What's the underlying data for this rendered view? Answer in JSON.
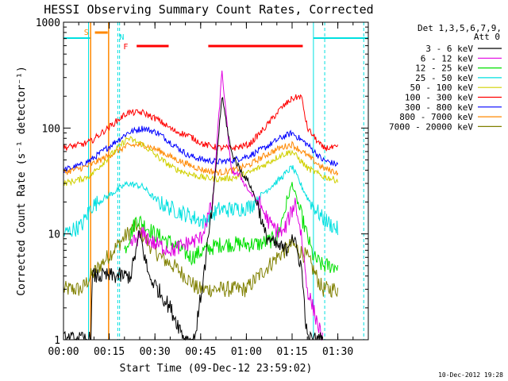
{
  "chart_data": {
    "type": "line",
    "title": "HESSI Observing Summary Count Rates, Corrected",
    "xlabel": "Start Time (09-Dec-12 23:59:02)",
    "ylabel": "Corrected Count Rate (s⁻¹ detector⁻¹)",
    "y_scale": "log",
    "ylim": [
      1,
      1000
    ],
    "xlim_minutes": [
      0,
      100
    ],
    "x_ticks": [
      {
        "t": 0,
        "label": "00:00"
      },
      {
        "t": 15,
        "label": "00:15"
      },
      {
        "t": 30,
        "label": "00:30"
      },
      {
        "t": 45,
        "label": "00:45"
      },
      {
        "t": 60,
        "label": "01:00"
      },
      {
        "t": 75,
        "label": "01:15"
      },
      {
        "t": 90,
        "label": "01:30"
      }
    ],
    "y_ticks": [
      {
        "v": 1,
        "label": "1"
      },
      {
        "v": 10,
        "label": "10"
      },
      {
        "v": 100,
        "label": "100"
      },
      {
        "v": 1000,
        "label": "1000"
      }
    ],
    "legend": {
      "header_line1": "Det 1,3,5,6,7,9,",
      "header_line2": "Att 0",
      "position": "right"
    },
    "series": [
      {
        "name": "3 - 6 keV",
        "color": "#000000",
        "x": [
          0,
          9,
          9.5,
          22,
          25,
          28,
          31,
          35,
          40,
          43,
          46,
          49,
          52,
          55,
          58,
          61,
          64,
          66,
          69,
          73,
          75,
          78,
          80,
          85
        ],
        "y": [
          1,
          1,
          4,
          4,
          10,
          4,
          3,
          2,
          1,
          1,
          4,
          20,
          200,
          60,
          40,
          30,
          18,
          10,
          8,
          7,
          10,
          5,
          1,
          1
        ]
      },
      {
        "name": "6 - 12 keV",
        "color": "#e000e0",
        "x": [
          22,
          26,
          30,
          36,
          40,
          45,
          49,
          52,
          55,
          58,
          61,
          64,
          68,
          72,
          76,
          78,
          80,
          85
        ],
        "y": [
          8,
          10,
          8,
          7,
          8,
          9,
          20,
          350,
          40,
          35,
          25,
          20,
          12,
          10,
          20,
          10,
          3,
          1
        ]
      },
      {
        "name": "12 - 25 keV",
        "color": "#00e000",
        "x": [
          20,
          24,
          30,
          36,
          42,
          46,
          52,
          58,
          64,
          70,
          75,
          78,
          82,
          85,
          88,
          90
        ],
        "y": [
          7,
          14,
          10,
          8,
          6,
          7,
          8,
          8,
          8,
          9,
          30,
          15,
          6,
          5,
          5,
          5
        ]
      },
      {
        "name": "25 - 50 keV",
        "color": "#00e0e0",
        "x": [
          0,
          6,
          9,
          21,
          26,
          31,
          36,
          41,
          46,
          51,
          56,
          61,
          66,
          71,
          75,
          80,
          85,
          90
        ],
        "y": [
          10,
          12,
          18,
          30,
          28,
          20,
          17,
          15,
          13,
          17,
          17,
          18,
          25,
          33,
          43,
          22,
          14,
          11
        ]
      },
      {
        "name": "50 - 100 keV",
        "color": "#d0d000",
        "x": [
          0,
          6,
          9,
          21,
          26,
          31,
          36,
          41,
          46,
          51,
          56,
          61,
          66,
          71,
          75,
          80,
          85,
          90
        ],
        "y": [
          30,
          33,
          36,
          80,
          70,
          53,
          42,
          37,
          34,
          33,
          34,
          38,
          45,
          55,
          60,
          42,
          35,
          32
        ]
      },
      {
        "name": "100 - 300 keV",
        "color": "#ff0000",
        "x": [
          0,
          6,
          9,
          21,
          26,
          31,
          36,
          41,
          46,
          51,
          56,
          61,
          66,
          71,
          75,
          78,
          80,
          85,
          90
        ],
        "y": [
          65,
          70,
          75,
          140,
          140,
          120,
          95,
          85,
          70,
          65,
          65,
          70,
          100,
          150,
          190,
          200,
          100,
          65,
          65
        ]
      },
      {
        "name": "300 - 800 keV",
        "color": "#0000ff",
        "x": [
          0,
          6,
          9,
          21,
          26,
          31,
          36,
          41,
          46,
          51,
          56,
          61,
          66,
          71,
          75,
          80,
          85,
          90
        ],
        "y": [
          40,
          45,
          50,
          90,
          100,
          90,
          70,
          55,
          50,
          48,
          50,
          55,
          65,
          80,
          90,
          70,
          50,
          45
        ]
      },
      {
        "name": "800 - 7000 keV",
        "color": "#ff8800",
        "x": [
          0,
          6,
          9,
          21,
          26,
          31,
          36,
          41,
          46,
          51,
          56,
          61,
          66,
          71,
          75,
          80,
          85,
          90
        ],
        "y": [
          38,
          42,
          45,
          68,
          70,
          62,
          52,
          45,
          40,
          38,
          40,
          45,
          55,
          65,
          70,
          55,
          42,
          38
        ]
      },
      {
        "name": "7000 - 20000 keV",
        "color": "#808000",
        "x": [
          0,
          6,
          9,
          21,
          24,
          28,
          32,
          36,
          40,
          44,
          48,
          52,
          56,
          60,
          64,
          70,
          75,
          80,
          85,
          90
        ],
        "y": [
          3,
          3,
          4,
          10,
          12,
          8,
          6,
          5,
          4,
          3,
          3,
          3,
          3,
          3,
          4,
          6,
          8,
          6,
          3,
          3
        ]
      }
    ],
    "annotations": [
      {
        "label": "S",
        "color": "#ff8800"
      },
      {
        "label": "N",
        "color": "#00e0e0"
      },
      {
        "label": "F",
        "color": "#ff0000"
      }
    ],
    "footer_timestamp": "10-Dec-2012 19:28",
    "grid": false
  }
}
